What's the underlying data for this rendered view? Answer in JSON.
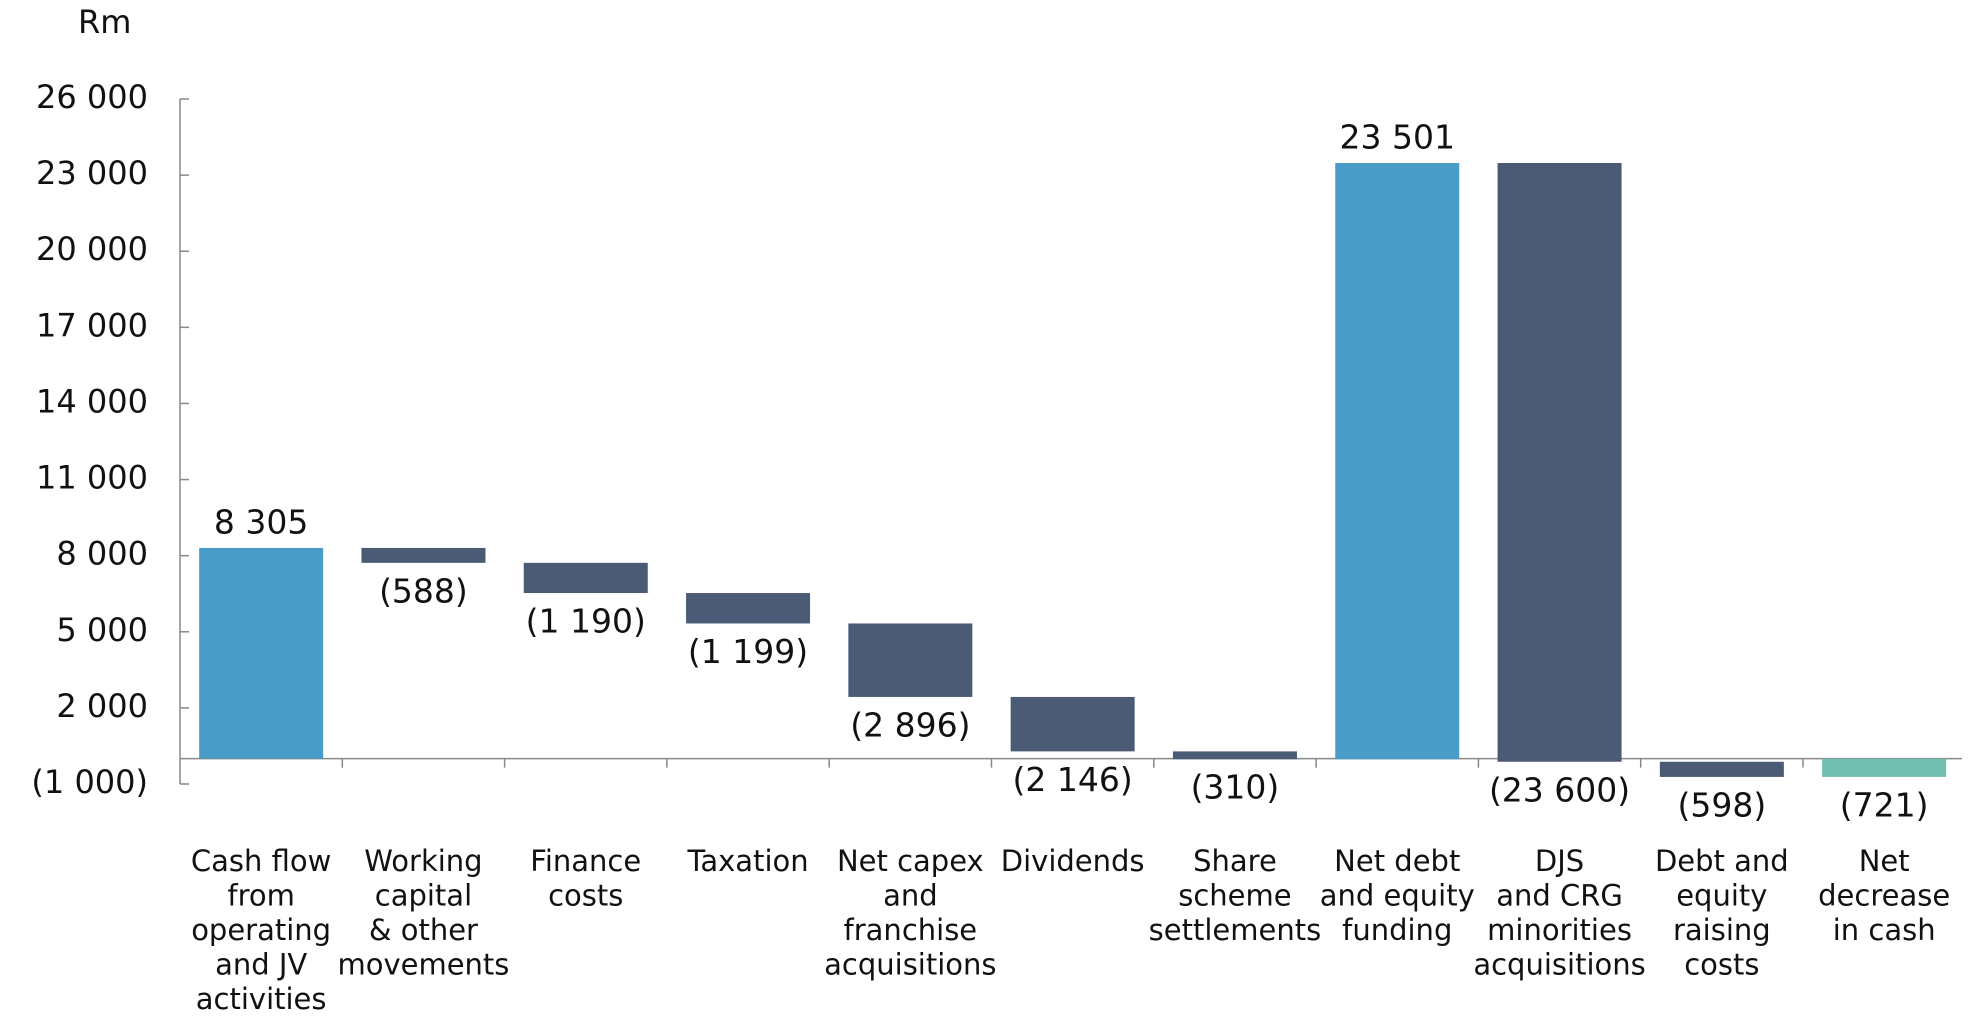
{
  "chart_data": {
    "type": "waterfall",
    "y_unit_label": "Rm",
    "categories": [
      [
        "Cash flow",
        "from",
        "operating",
        "and JV",
        "activities"
      ],
      [
        "Working",
        "capital",
        "& other",
        "movements"
      ],
      [
        "Finance",
        "costs"
      ],
      [
        "Taxation"
      ],
      [
        "Net capex",
        "and",
        "franchise",
        "acquisitions"
      ],
      [
        "Dividends"
      ],
      [
        "Share",
        "scheme",
        "settlements"
      ],
      [
        "Net debt",
        "and equity",
        "funding"
      ],
      [
        "DJS",
        "and CRG",
        "minorities",
        "acquisitions"
      ],
      [
        "Debt and",
        "equity",
        "raising",
        "costs"
      ],
      [
        "Net",
        "decrease",
        "in cash"
      ]
    ],
    "values": [
      8305,
      -588,
      -1190,
      -1199,
      -2896,
      -2146,
      -310,
      23501,
      -23600,
      -598,
      -721
    ],
    "value_labels": [
      "8 305",
      "(588)",
      "(1 190)",
      "(1 199)",
      "(2 896)",
      "(2 146)",
      "(310)",
      "23 501",
      "(23 600)",
      "(598)",
      "(721)"
    ],
    "measure": [
      "relative",
      "relative",
      "relative",
      "relative",
      "relative",
      "relative",
      "relative",
      "relative",
      "relative",
      "relative",
      "total"
    ],
    "colors": {
      "increase": "#4a9cc8",
      "decrease": "#4b5a75",
      "total": "#72bfb2"
    },
    "ylim": [
      -1000,
      26000
    ],
    "yticks": [
      {
        "value": -1000,
        "label": "(1 000)"
      },
      {
        "value": 2000,
        "label": "2 000"
      },
      {
        "value": 5000,
        "label": "5 000"
      },
      {
        "value": 8000,
        "label": "8 000"
      },
      {
        "value": 11000,
        "label": "11 000"
      },
      {
        "value": 14000,
        "label": "14 000"
      },
      {
        "value": 17000,
        "label": "17 000"
      },
      {
        "value": 20000,
        "label": "20 000"
      },
      {
        "value": 23000,
        "label": "23 000"
      },
      {
        "value": 26000,
        "label": "26 000"
      }
    ],
    "grid": false
  }
}
